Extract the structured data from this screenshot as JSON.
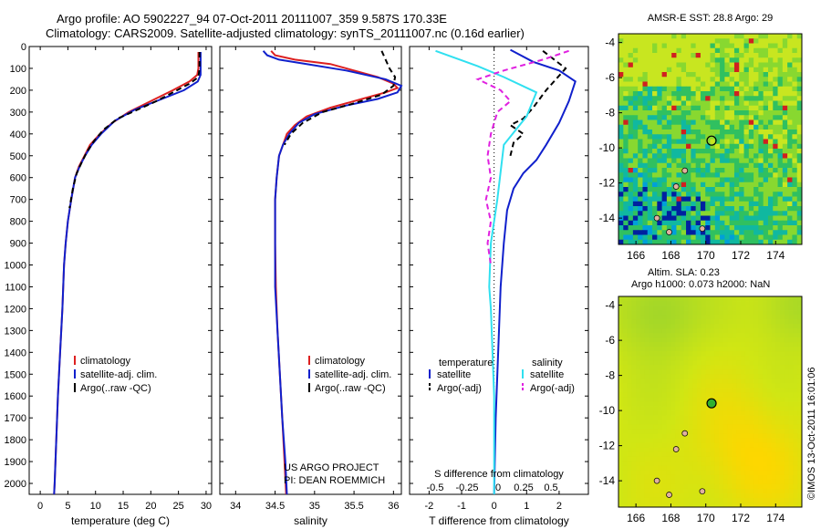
{
  "header": {
    "line1": "Argo profile: AO 5902227_94 07-Oct-2011 20111007_359 9.587S 170.33E",
    "line2": "Climatology: CARS2009. Satellite-adjusted climatology: synTS_20111007.nc (0.16d earlier)"
  },
  "colors": {
    "red": "#dd2020",
    "blue": "#1020cc",
    "black": "#000000",
    "cyan": "#30e0f0",
    "magenta": "#e020e0"
  },
  "depth_axis": {
    "ylim": [
      0,
      2050
    ],
    "ticks": [
      "0",
      "100",
      "200",
      "300",
      "400",
      "500",
      "600",
      "700",
      "800",
      "900",
      "1000",
      "1100",
      "1200",
      "1300",
      "1400",
      "1500",
      "1600",
      "1700",
      "1800",
      "1900",
      "2000"
    ]
  },
  "chart_data": [
    {
      "type": "line",
      "id": "temperature",
      "xlabel": "temperature (deg C)",
      "xlim": [
        -2,
        31
      ],
      "xticks": [
        "0",
        "5",
        "10",
        "15",
        "20",
        "25",
        "30"
      ],
      "legend": [
        "climatology",
        "satellite-adj. clim.",
        "Argo(..raw -QC)"
      ],
      "series": [
        {
          "name": "climatology",
          "color": "red",
          "dash": "",
          "points": [
            [
              28.6,
              25
            ],
            [
              28.6,
              100
            ],
            [
              28.4,
              130
            ],
            [
              27,
              160
            ],
            [
              24,
              200
            ],
            [
              20,
              250
            ],
            [
              16,
              300
            ],
            [
              13,
              350
            ],
            [
              10.8,
              400
            ],
            [
              9,
              450
            ],
            [
              8,
              500
            ],
            [
              7,
              550
            ],
            [
              6.3,
              600
            ],
            [
              5.6,
              700
            ],
            [
              5,
              800
            ],
            [
              4.6,
              900
            ],
            [
              4.3,
              1000
            ],
            [
              4,
              1200
            ],
            [
              3.6,
              1400
            ],
            [
              3.2,
              1600
            ],
            [
              2.9,
              1800
            ],
            [
              2.6,
              2000
            ],
            [
              2.5,
              2050
            ]
          ]
        },
        {
          "name": "satellite-adj. clim.",
          "color": "blue",
          "dash": "",
          "points": [
            [
              29,
              25
            ],
            [
              29,
              100
            ],
            [
              29,
              130
            ],
            [
              28.5,
              160
            ],
            [
              26,
              200
            ],
            [
              22,
              240
            ],
            [
              17,
              290
            ],
            [
              13.5,
              340
            ],
            [
              11,
              400
            ],
            [
              9.3,
              450
            ],
            [
              8.1,
              500
            ],
            [
              7.1,
              550
            ],
            [
              6.3,
              600
            ],
            [
              5.6,
              700
            ],
            [
              5,
              800
            ],
            [
              4.6,
              900
            ],
            [
              4.3,
              1000
            ],
            [
              4,
              1200
            ],
            [
              3.6,
              1400
            ],
            [
              3.2,
              1600
            ],
            [
              2.9,
              1800
            ],
            [
              2.6,
              2000
            ],
            [
              2.5,
              2050
            ]
          ]
        },
        {
          "name": "Argo(..raw -QC)",
          "color": "black",
          "dash": "6,4",
          "points": [
            [
              28.8,
              25
            ],
            [
              28.8,
              100
            ],
            [
              28.6,
              140
            ],
            [
              27,
              170
            ],
            [
              24,
              210
            ],
            [
              21,
              250
            ],
            [
              17.5,
              290
            ],
            [
              14,
              330
            ],
            [
              11.5,
              380
            ],
            [
              9.8,
              430
            ],
            [
              8.5,
              480
            ],
            [
              7.5,
              530
            ],
            [
              6.6,
              580
            ],
            [
              5.9,
              650
            ],
            [
              5.3,
              740
            ]
          ]
        }
      ]
    },
    {
      "type": "line",
      "id": "salinity",
      "xlabel": "salinity",
      "xlim": [
        33.8,
        36.1
      ],
      "xticks": [
        "34",
        "34.5",
        "35",
        "35.5",
        "36"
      ],
      "legend": [
        "climatology",
        "satellite-adj. clim.",
        "Argo(..raw -QC)"
      ],
      "notes": [
        "US ARGO PROJECT",
        "PI: DEAN ROEMMICH"
      ],
      "series": [
        {
          "name": "climatology",
          "color": "red",
          "dash": "",
          "points": [
            [
              34.45,
              20
            ],
            [
              34.5,
              40
            ],
            [
              34.75,
              60
            ],
            [
              35.2,
              80
            ],
            [
              35.5,
              110
            ],
            [
              35.8,
              140
            ],
            [
              36,
              170
            ],
            [
              36.05,
              190
            ],
            [
              35.9,
              210
            ],
            [
              35.6,
              240
            ],
            [
              35.2,
              280
            ],
            [
              34.9,
              320
            ],
            [
              34.75,
              360
            ],
            [
              34.65,
              400
            ],
            [
              34.6,
              450
            ],
            [
              34.55,
              500
            ],
            [
              34.52,
              600
            ],
            [
              34.5,
              700
            ],
            [
              34.5,
              900
            ],
            [
              34.51,
              1100
            ],
            [
              34.53,
              1300
            ],
            [
              34.56,
              1500
            ],
            [
              34.59,
              1700
            ],
            [
              34.62,
              1900
            ],
            [
              34.64,
              2050
            ]
          ]
        },
        {
          "name": "satellite-adj. clim.",
          "color": "blue",
          "dash": "",
          "points": [
            [
              34.35,
              20
            ],
            [
              34.4,
              40
            ],
            [
              34.55,
              60
            ],
            [
              34.9,
              80
            ],
            [
              35.4,
              110
            ],
            [
              35.9,
              150
            ],
            [
              36.1,
              180
            ],
            [
              36.05,
              210
            ],
            [
              35.8,
              240
            ],
            [
              35.4,
              270
            ],
            [
              35.0,
              310
            ],
            [
              34.8,
              350
            ],
            [
              34.68,
              400
            ],
            [
              34.6,
              450
            ],
            [
              34.55,
              500
            ],
            [
              34.52,
              600
            ],
            [
              34.5,
              700
            ],
            [
              34.5,
              900
            ],
            [
              34.5,
              1100
            ],
            [
              34.53,
              1300
            ],
            [
              34.56,
              1500
            ],
            [
              34.59,
              1700
            ],
            [
              34.63,
              1900
            ],
            [
              34.65,
              2050
            ]
          ]
        },
        {
          "name": "Argo(..raw -QC)",
          "color": "black",
          "dash": "6,4",
          "points": [
            [
              35.85,
              20
            ],
            [
              35.9,
              60
            ],
            [
              35.95,
              100
            ],
            [
              36.02,
              140
            ],
            [
              36.0,
              180
            ],
            [
              35.85,
              220
            ],
            [
              35.5,
              260
            ],
            [
              35.1,
              300
            ],
            [
              34.85,
              350
            ],
            [
              34.7,
              400
            ],
            [
              34.62,
              450
            ]
          ]
        }
      ]
    },
    {
      "type": "line",
      "id": "difference",
      "xlabel": "T difference from climatology",
      "top_label": "S difference from climatology",
      "xlim": [
        -2.6,
        2.9
      ],
      "xticks": [
        "-2",
        "-1",
        "0",
        "1",
        "2"
      ],
      "top_ticks": [
        "-0.5",
        "-0.25",
        "0",
        "0.25",
        "0.5"
      ],
      "legend_titles": [
        "temperature",
        "salinity"
      ],
      "legend": [
        "satellite",
        "Argo(-adj)",
        "satellite",
        "Argo(-adj)"
      ],
      "series": [
        {
          "name": "temperature satellite",
          "color": "blue",
          "dash": "",
          "points": [
            [
              0.5,
              15
            ],
            [
              1.2,
              70
            ],
            [
              2.0,
              110
            ],
            [
              2.5,
              160
            ],
            [
              2.3,
              250
            ],
            [
              2.0,
              350
            ],
            [
              1.6,
              450
            ],
            [
              1.3,
              520
            ],
            [
              0.9,
              580
            ],
            [
              0.6,
              650
            ],
            [
              0.4,
              750
            ],
            [
              0.3,
              900
            ],
            [
              0.2,
              1100
            ],
            [
              0.15,
              1300
            ],
            [
              0.1,
              1500
            ],
            [
              0.05,
              1700
            ],
            [
              0.02,
              1900
            ],
            [
              0,
              2050
            ]
          ]
        },
        {
          "name": "temperature Argo(-adj)",
          "color": "black",
          "dash": "6,4",
          "points": [
            [
              1.5,
              20
            ],
            [
              2.2,
              100
            ],
            [
              1.6,
              200
            ],
            [
              1.2,
              280
            ],
            [
              0.9,
              330
            ],
            [
              0.5,
              360
            ],
            [
              0.9,
              400
            ],
            [
              0.6,
              440
            ],
            [
              0.5,
              500
            ]
          ]
        },
        {
          "name": "salinity satellite",
          "color": "cyan",
          "dash": "",
          "points": [
            [
              -1.8,
              20
            ],
            [
              -0.5,
              90
            ],
            [
              0.3,
              140
            ],
            [
              1.3,
              210
            ],
            [
              1.0,
              320
            ],
            [
              0.3,
              450
            ],
            [
              0.1,
              700
            ],
            [
              -0.1,
              900
            ],
            [
              -0.15,
              1100
            ],
            [
              -0.1,
              1200
            ],
            [
              -0.05,
              1400
            ],
            [
              0,
              1600
            ],
            [
              0,
              2050
            ]
          ]
        },
        {
          "name": "salinity Argo(-adj)",
          "color": "magenta",
          "dash": "6,4",
          "points": [
            [
              2.3,
              20
            ],
            [
              1.5,
              60
            ],
            [
              0.3,
              110
            ],
            [
              -0.5,
              150
            ],
            [
              0.2,
              200
            ],
            [
              0.5,
              250
            ],
            [
              0.1,
              300
            ],
            [
              -0.1,
              400
            ],
            [
              -0.2,
              500
            ],
            [
              -0.1,
              600
            ],
            [
              -0.25,
              700
            ],
            [
              -0.1,
              800
            ],
            [
              -0.2,
              900
            ],
            [
              -0.1,
              1000
            ]
          ]
        }
      ]
    },
    {
      "type": "heatmap",
      "id": "sst_map",
      "title": "AMSR-E SST: 28.8 Argo: 29",
      "xlim": [
        165,
        175.5
      ],
      "ylim": [
        -15.5,
        -3.5
      ],
      "xticks": [
        "166",
        "168",
        "170",
        "172",
        "174"
      ],
      "yticks": [
        "-4",
        "-6",
        "-8",
        "-10",
        "-12",
        "-14"
      ],
      "marker": {
        "lon": 170.33,
        "lat": -9.587
      }
    },
    {
      "type": "heatmap",
      "id": "sla_map",
      "title": "Altim. SLA: 0.23",
      "subtitle": "Argo h1000: 0.073 h2000: NaN",
      "xlim": [
        165,
        175.5
      ],
      "ylim": [
        -15.5,
        -3.5
      ],
      "xticks": [
        "166",
        "168",
        "170",
        "172",
        "174"
      ],
      "yticks": [
        "-4",
        "-6",
        "-8",
        "-10",
        "-12",
        "-14"
      ],
      "marker": {
        "lon": 170.33,
        "lat": -9.587
      }
    }
  ],
  "footer": {
    "stamp": "©IMOS 13-Oct-2011 16:01:06"
  }
}
